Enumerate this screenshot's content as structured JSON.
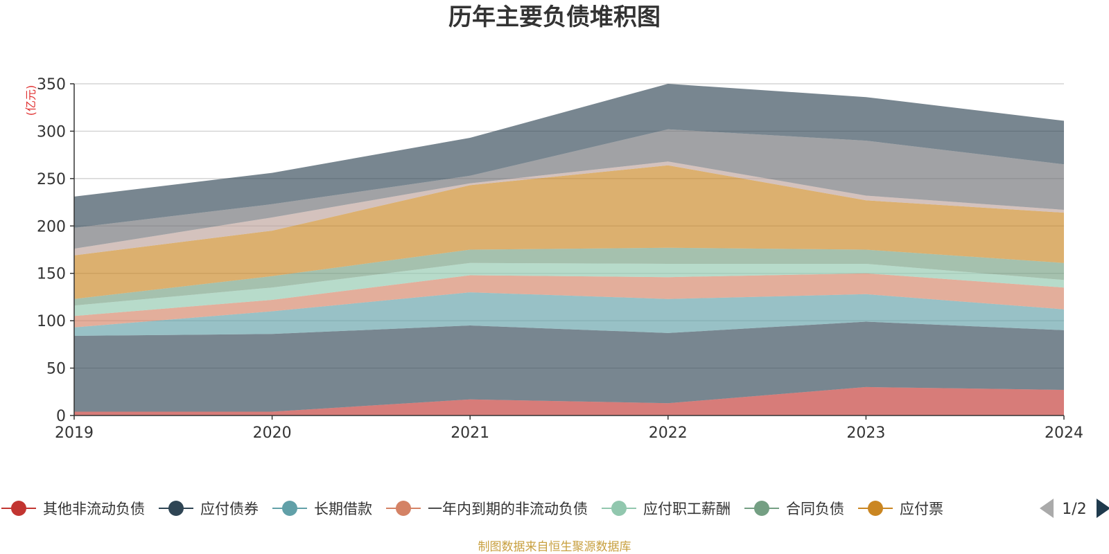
{
  "colors": {
    "accent": "#1f3a4d",
    "nav_disabled": "#aaaaaa",
    "source_text": "#c8a040",
    "unit_text": "#e03030"
  },
  "chart_data": {
    "type": "area",
    "stacked": true,
    "title": "历年主要负债堆积图",
    "unit": "(亿元)",
    "x": [
      "2019",
      "2020",
      "2021",
      "2022",
      "2023",
      "2024"
    ],
    "ylim": [
      0,
      350
    ],
    "yticks": [
      0,
      50,
      100,
      150,
      200,
      250,
      300,
      350
    ],
    "grid": true,
    "legend_position": "bottom",
    "series": [
      {
        "name": "其他非流动负债",
        "color": "#c23531",
        "values": [
          4,
          4,
          17,
          13,
          30,
          27
        ]
      },
      {
        "name": "应付债券",
        "color": "#2f4554",
        "values": [
          80,
          82,
          78,
          74,
          69,
          63
        ]
      },
      {
        "name": "长期借款",
        "color": "#61a0a8",
        "values": [
          9,
          24,
          35,
          36,
          29,
          22
        ]
      },
      {
        "name": "一年内到期的非流动负债",
        "color": "#d48265",
        "values": [
          12,
          12,
          18,
          23,
          22,
          23
        ]
      },
      {
        "name": "应付职工薪酬",
        "color": "#91c7ae",
        "values": [
          11,
          13,
          13,
          14,
          10,
          8
        ]
      },
      {
        "name": "合同负债",
        "color": "#749f83",
        "values": [
          7,
          12,
          14,
          17,
          15,
          18
        ]
      },
      {
        "name": "应付票",
        "color": "#ca8622",
        "values": [
          46,
          48,
          68,
          87,
          52,
          53
        ]
      },
      {
        "name": "",
        "color": "#bda29a",
        "values": [
          7,
          14,
          2,
          4,
          5,
          3
        ]
      },
      {
        "name": "",
        "color": "#6e7074",
        "values": [
          22,
          14,
          8,
          34,
          58,
          48
        ]
      },
      {
        "name": "",
        "color": "#2f4554",
        "values": [
          33,
          33,
          40,
          48,
          46,
          46
        ]
      }
    ],
    "source_note": "制图数据来自恒生聚源数据库"
  },
  "legend": {
    "page_indicator": "1/2"
  }
}
